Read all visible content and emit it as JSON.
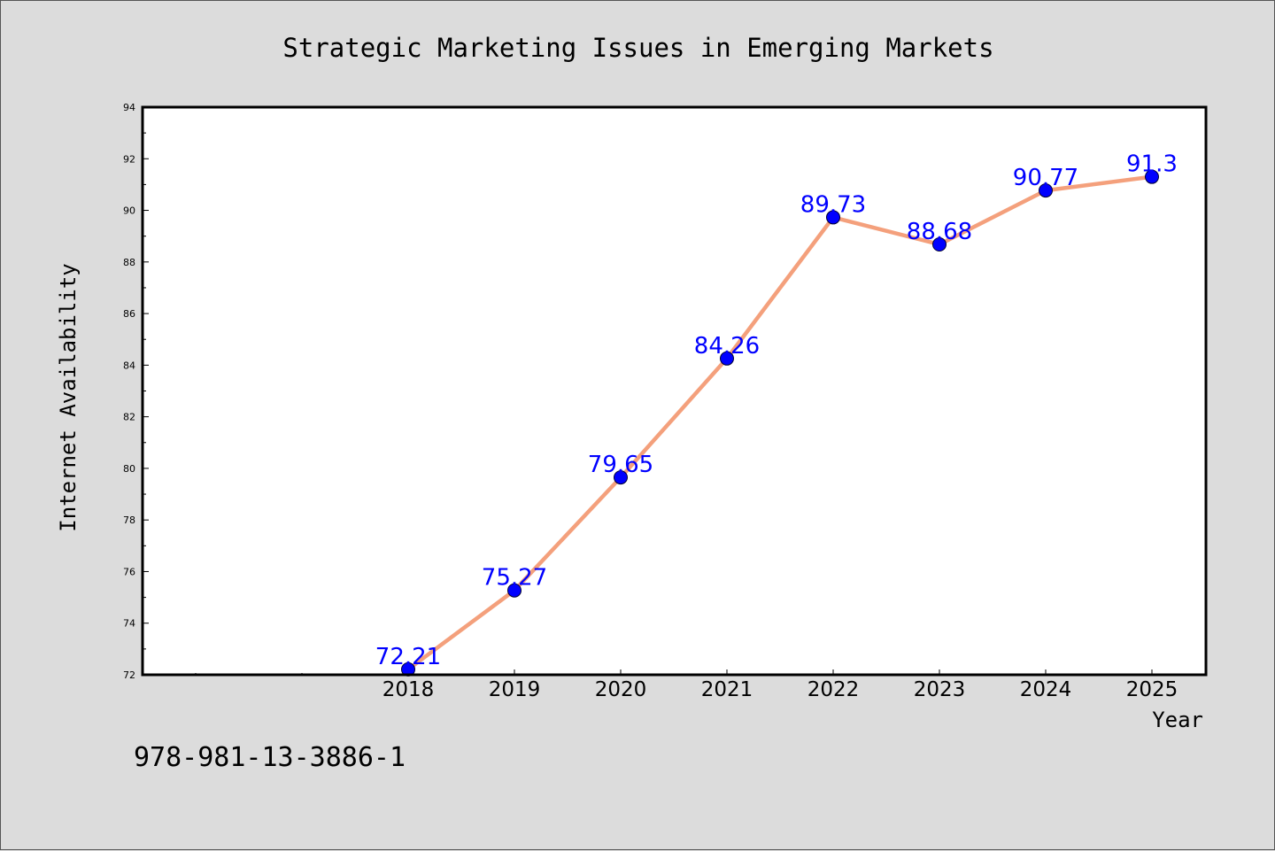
{
  "chart_data": {
    "type": "line",
    "title": "Strategic Marketing Issues in Emerging Markets",
    "xlabel": "Year",
    "ylabel": "Internet Availability",
    "categories": [
      "2018",
      "2019",
      "2020",
      "2021",
      "2022",
      "2023",
      "2024",
      "2025"
    ],
    "values": [
      72.21,
      75.27,
      79.65,
      84.26,
      89.73,
      88.68,
      90.77,
      91.3
    ],
    "data_labels": [
      "72.21",
      "75.27",
      "79.65",
      "84.26",
      "89.73",
      "88.68",
      "90.77",
      "91.3"
    ],
    "ylim": [
      72,
      94
    ],
    "yticks": [
      "72",
      "74",
      "76",
      "78",
      "80",
      "82",
      "84",
      "86",
      "88",
      "90",
      "92",
      "94"
    ],
    "grid": false,
    "legend": "none",
    "colors": {
      "line": "#f4a07c",
      "marker": "#0000ff",
      "label": "#0000ff",
      "plot_bg": "#ffffff",
      "figure_bg": "#dcdcdc"
    }
  },
  "footer": {
    "isbn": "978-981-13-3886-1"
  }
}
